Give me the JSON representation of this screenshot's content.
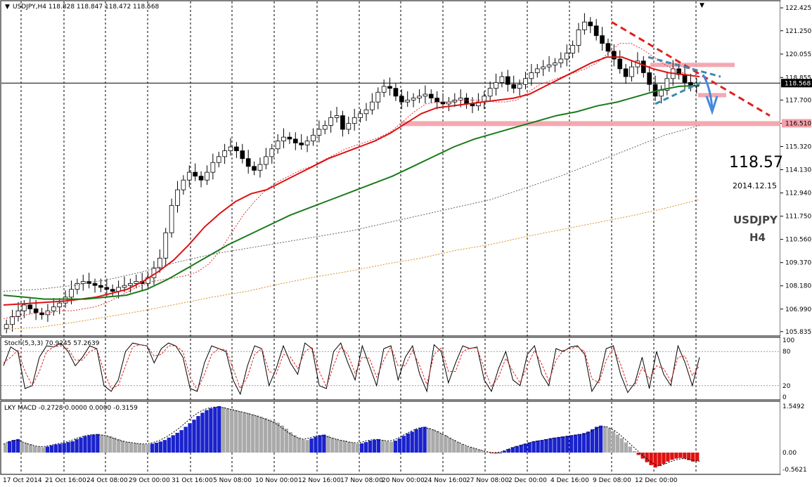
{
  "chart_data": [
    {
      "panel": "main",
      "type": "candlestick",
      "header": "USDJPY,H4  118.828 118.847 118.472 118.568",
      "symbol": "USDJPY",
      "timeframe": "H4",
      "last_price_label": "118.568",
      "price_big": "118.57",
      "date_label": "2014.12.15",
      "ylim": [
        105.83,
        122.43
      ],
      "yticks": [
        "122.425",
        "121.250",
        "120.055",
        "118.855",
        "117.700",
        "116.510",
        "115.320",
        "114.130",
        "112.940",
        "111.750",
        "110.560",
        "109.370",
        "108.180",
        "106.990",
        "105.835"
      ],
      "highlight_tick": "116.510",
      "xtick_labels": [
        "17 Oct 2014",
        "21 Oct 16:00",
        "24 Oct 08:00",
        "29 Oct 00:00",
        "31 Oct 16:00",
        "5 Nov 08:00",
        "10 Nov 00:00",
        "12 Nov 16:00",
        "17 Nov 08:00",
        "20 Nov 00:00",
        "24 Nov 16:00",
        "27 Nov 08:00",
        "2 Dec 00:00",
        "4 Dec 16:00",
        "9 Dec 08:00",
        "12 Dec 00:00"
      ],
      "close_series": [
        106.2,
        106.6,
        106.9,
        107.2,
        107.0,
        106.8,
        106.7,
        106.9,
        107.1,
        107.3,
        107.6,
        108.0,
        108.3,
        108.4,
        108.3,
        108.2,
        108.1,
        108.0,
        107.9,
        108.1,
        108.2,
        108.3,
        108.4,
        108.3,
        108.6,
        109.1,
        109.6,
        110.9,
        112.3,
        113.1,
        113.6,
        114.0,
        113.8,
        113.6,
        114.0,
        114.5,
        114.8,
        115.1,
        115.3,
        115.1,
        114.7,
        114.3,
        114.1,
        114.4,
        114.8,
        115.2,
        115.6,
        115.8,
        115.7,
        115.5,
        115.4,
        115.6,
        115.9,
        116.2,
        116.4,
        116.8,
        116.9,
        116.2,
        116.5,
        116.8,
        117.0,
        117.2,
        117.6,
        118.1,
        118.4,
        118.3,
        117.9,
        117.6,
        117.7,
        117.8,
        117.9,
        118.0,
        117.8,
        117.6,
        117.5,
        117.6,
        117.7,
        117.8,
        117.5,
        117.4,
        117.6,
        117.9,
        118.3,
        118.6,
        118.9,
        118.5,
        118.3,
        118.5,
        118.8,
        119.1,
        119.3,
        119.4,
        119.5,
        119.6,
        119.8,
        120.1,
        120.5,
        121.3,
        121.7,
        121.5,
        121.0,
        120.6,
        120.2,
        119.8,
        119.3,
        118.9,
        119.4,
        119.7,
        119.1,
        118.5,
        117.9,
        118.2,
        118.8,
        119.3,
        119.0,
        118.6,
        118.4,
        118.57
      ],
      "series": [
        {
          "name": "ma-fast-dotted",
          "color": "#e0303a",
          "style": "dotted",
          "values": [
            106.5,
            106.6,
            106.7,
            106.8,
            106.8,
            106.9,
            106.9,
            107.0,
            107.1,
            107.3,
            107.6,
            107.9,
            108.2,
            108.4,
            108.5,
            108.6,
            108.7,
            108.9,
            109.3,
            110.0,
            110.9,
            111.8,
            112.5,
            113.1,
            113.5,
            113.8,
            114.1,
            114.3,
            114.6,
            114.9,
            115.2,
            115.4,
            115.6,
            115.8,
            116.1,
            116.6,
            117.1,
            117.5,
            117.6,
            117.6,
            117.7,
            117.7,
            117.7,
            117.6,
            117.6,
            117.7,
            118.1,
            118.5,
            118.7,
            118.9,
            119.1,
            119.3,
            119.6,
            120.1,
            120.6,
            120.6,
            120.3,
            119.9,
            119.5,
            119.2,
            119.0,
            118.9
          ]
        },
        {
          "name": "ma-red",
          "color": "#dd1111",
          "style": "solid",
          "values": [
            107.2,
            107.25,
            107.3,
            107.35,
            107.4,
            107.5,
            107.6,
            107.8,
            108.0,
            108.4,
            108.9,
            109.5,
            110.3,
            111.2,
            111.9,
            112.5,
            112.9,
            113.1,
            113.5,
            113.9,
            114.3,
            114.7,
            115.0,
            115.3,
            115.6,
            116.0,
            116.5,
            117.0,
            117.3,
            117.4,
            117.5,
            117.6,
            117.7,
            117.8,
            118.0,
            118.4,
            118.8,
            119.2,
            119.6,
            119.9,
            119.9,
            119.6,
            119.3,
            119.1,
            119.0,
            118.9
          ]
        },
        {
          "name": "ma-green",
          "color": "#1a7a1a",
          "style": "solid",
          "values": [
            107.7,
            107.6,
            107.5,
            107.5,
            107.5,
            107.6,
            107.7,
            108.0,
            108.5,
            109.1,
            109.7,
            110.3,
            110.8,
            111.3,
            111.8,
            112.2,
            112.6,
            113.0,
            113.4,
            113.8,
            114.3,
            114.8,
            115.3,
            115.7,
            116.0,
            116.3,
            116.6,
            116.9,
            117.1,
            117.4,
            117.6,
            117.9,
            118.2,
            118.4,
            118.45
          ]
        },
        {
          "name": "ma-grey-dotted",
          "color": "#666666",
          "style": "dotted",
          "values": [
            107.9,
            108.0,
            108.2,
            108.5,
            108.9,
            109.4,
            109.8,
            110.1,
            110.4,
            110.7,
            111.0,
            111.4,
            111.8,
            112.2,
            112.6,
            113.2,
            113.8,
            114.5,
            115.2,
            115.9,
            116.4
          ]
        },
        {
          "name": "ma-orange-dotted",
          "color": "#d99020",
          "style": "dotted",
          "values": [
            105.95,
            106.05,
            106.3,
            106.6,
            106.9,
            107.25,
            107.6,
            107.9,
            108.3,
            108.65,
            108.95,
            109.3,
            109.6,
            110.0,
            110.3,
            110.7,
            111.05,
            111.4,
            111.75,
            112.15,
            112.6
          ]
        }
      ],
      "levels": [
        {
          "name": "resistance-zone",
          "price": 119.5,
          "color": "#f2a0a8"
        },
        {
          "name": "support-zone",
          "price": 116.51,
          "color": "#f2a0a8"
        },
        {
          "name": "current-price-line",
          "price": 118.568,
          "color": "#000000"
        }
      ],
      "annotations": [
        {
          "name": "downtrend-line",
          "color": "#e02020",
          "style": "dashed",
          "from": [
            121.7
          ],
          "to": [
            116.9
          ]
        },
        {
          "name": "pennant",
          "color": "#3a8ab0",
          "style": "dashed"
        },
        {
          "name": "down-arrow",
          "color": "#4488dd"
        }
      ]
    },
    {
      "panel": "stochastic",
      "type": "line",
      "header": "Stoch(5,3,3) 70.9245 57.2639",
      "ylim": [
        0,
        100
      ],
      "yticks": [
        "100",
        "80",
        "20",
        "0"
      ],
      "levels": [
        80,
        20
      ],
      "series": [
        {
          "name": "main",
          "color": "#000000",
          "values": [
            55,
            88,
            80,
            15,
            20,
            70,
            90,
            88,
            95,
            80,
            55,
            70,
            90,
            85,
            20,
            10,
            30,
            80,
            95,
            92,
            90,
            60,
            85,
            95,
            90,
            70,
            15,
            10,
            60,
            90,
            85,
            80,
            30,
            5,
            55,
            90,
            85,
            20,
            50,
            90,
            60,
            40,
            95,
            85,
            20,
            15,
            80,
            95,
            60,
            30,
            90,
            55,
            20,
            85,
            90,
            30,
            70,
            90,
            40,
            10,
            92,
            80,
            25,
            60,
            90,
            85,
            88,
            30,
            10,
            50,
            80,
            30,
            20,
            75,
            90,
            40,
            20,
            85,
            80,
            88,
            90,
            75,
            10,
            30,
            85,
            90,
            40,
            8,
            25,
            70,
            15,
            80,
            40,
            20,
            90,
            60,
            20,
            70
          ]
        },
        {
          "name": "signal",
          "color": "#e02020",
          "values": [
            60,
            70,
            82,
            45,
            20,
            45,
            80,
            88,
            90,
            85,
            65,
            65,
            80,
            85,
            45,
            15,
            20,
            55,
            88,
            92,
            90,
            72,
            75,
            90,
            90,
            80,
            35,
            12,
            40,
            75,
            85,
            83,
            50,
            15,
            35,
            75,
            85,
            45,
            40,
            75,
            70,
            50,
            80,
            88,
            45,
            18,
            55,
            88,
            75,
            42,
            70,
            68,
            35,
            65,
            88,
            55,
            55,
            82,
            55,
            22,
            75,
            86,
            45,
            45,
            80,
            86,
            86,
            50,
            18,
            35,
            68,
            45,
            25,
            55,
            82,
            58,
            28,
            65,
            82,
            85,
            88,
            80,
            32,
            25,
            65,
            86,
            58,
            20,
            20,
            52,
            32,
            55,
            50,
            28,
            70,
            72,
            38,
            55
          ]
        }
      ]
    },
    {
      "panel": "macd",
      "type": "bar",
      "header": "LKY MACD -0.2728 0.0000 0.0000 -0.3159",
      "ylim": [
        -0.5621,
        1.5492
      ],
      "yticks": [
        "1.5492",
        "0.00",
        "-0.5621"
      ],
      "colors": {
        "rising": "#1a22cc",
        "falling": "#aaaaaa",
        "negative": "#dd1111"
      },
      "values": [
        0.3,
        0.38,
        0.42,
        0.45,
        0.35,
        0.32,
        0.28,
        0.22,
        0.2,
        0.18,
        0.2,
        0.24,
        0.27,
        0.29,
        0.32,
        0.35,
        0.38,
        0.45,
        0.5,
        0.55,
        0.58,
        0.6,
        0.62,
        0.6,
        0.58,
        0.55,
        0.5,
        0.45,
        0.4,
        0.36,
        0.34,
        0.32,
        0.3,
        0.28,
        0.28,
        0.3,
        0.33,
        0.37,
        0.42,
        0.5,
        0.58,
        0.66,
        0.75,
        0.86,
        0.98,
        1.1,
        1.22,
        1.33,
        1.42,
        1.48,
        1.52,
        1.55,
        1.52,
        1.48,
        1.45,
        1.42,
        1.38,
        1.35,
        1.32,
        1.28,
        1.24,
        1.2,
        1.15,
        1.1,
        1.05,
        1.0,
        0.9,
        0.8,
        0.68,
        0.58,
        0.5,
        0.44,
        0.42,
        0.47,
        0.53,
        0.58,
        0.6,
        0.56,
        0.5,
        0.46,
        0.42,
        0.4,
        0.36,
        0.33,
        0.3,
        0.31,
        0.35,
        0.4,
        0.43,
        0.45,
        0.42,
        0.38,
        0.36,
        0.4,
        0.47,
        0.56,
        0.64,
        0.7,
        0.78,
        0.83,
        0.86,
        0.82,
        0.78,
        0.72,
        0.65,
        0.58,
        0.5,
        0.42,
        0.35,
        0.28,
        0.22,
        0.18,
        0.14,
        0.1,
        0.06,
        0.02,
        -0.02,
        -0.03,
        0.0,
        0.06,
        0.12,
        0.18,
        0.22,
        0.26,
        0.3,
        0.34,
        0.38,
        0.4,
        0.42,
        0.45,
        0.48,
        0.5,
        0.52,
        0.54,
        0.56,
        0.58,
        0.6,
        0.62,
        0.65,
        0.7,
        0.78,
        0.86,
        0.9,
        0.88,
        0.82,
        0.72,
        0.6,
        0.48,
        0.34,
        0.2,
        0.05,
        -0.08,
        -0.2,
        -0.32,
        -0.42,
        -0.5,
        -0.45,
        -0.38,
        -0.3,
        -0.24,
        -0.2,
        -0.18,
        -0.2,
        -0.25,
        -0.3,
        -0.28
      ],
      "signal": [
        0.28,
        0.34,
        0.4,
        0.42,
        0.38,
        0.33,
        0.28,
        0.24,
        0.21,
        0.2,
        0.21,
        0.24,
        0.27,
        0.3,
        0.33,
        0.36,
        0.4,
        0.46,
        0.51,
        0.55,
        0.58,
        0.6,
        0.6,
        0.59,
        0.57,
        0.53,
        0.48,
        0.43,
        0.39,
        0.36,
        0.34,
        0.32,
        0.3,
        0.29,
        0.3,
        0.32,
        0.36,
        0.41,
        0.48,
        0.56,
        0.65,
        0.75,
        0.86,
        0.98,
        1.1,
        1.22,
        1.32,
        1.4,
        1.46,
        1.5,
        1.52,
        1.52,
        1.5,
        1.47,
        1.44,
        1.4,
        1.37,
        1.34,
        1.3,
        1.26,
        1.22,
        1.17,
        1.12,
        1.07,
        1.01,
        0.93,
        0.83,
        0.72,
        0.62,
        0.54,
        0.48,
        0.45,
        0.47,
        0.51,
        0.55,
        0.57,
        0.56,
        0.52,
        0.48,
        0.44,
        0.41,
        0.38,
        0.35,
        0.33,
        0.33,
        0.35,
        0.39,
        0.42,
        0.44,
        0.43,
        0.41,
        0.39,
        0.4,
        0.45,
        0.52,
        0.6,
        0.67,
        0.74,
        0.8,
        0.84,
        0.83,
        0.8,
        0.75,
        0.69,
        0.62,
        0.55,
        0.47,
        0.4,
        0.33,
        0.27,
        0.22,
        0.17,
        0.13,
        0.09,
        0.05,
        0.02,
        0.0,
        0.0,
        0.03,
        0.08,
        0.13,
        0.18,
        0.22,
        0.26,
        0.3,
        0.34,
        0.37,
        0.4,
        0.42,
        0.44,
        0.47,
        0.49,
        0.51,
        0.53,
        0.55,
        0.57,
        0.59,
        0.61,
        0.64,
        0.69,
        0.76,
        0.83,
        0.87,
        0.86,
        0.8,
        0.72,
        0.61,
        0.49,
        0.36,
        0.23,
        0.1,
        -0.03,
        -0.15,
        -0.26,
        -0.36,
        -0.44,
        -0.42,
        -0.37,
        -0.31,
        -0.26,
        -0.22,
        -0.2,
        -0.21,
        -0.24,
        -0.28,
        -0.29
      ]
    }
  ]
}
